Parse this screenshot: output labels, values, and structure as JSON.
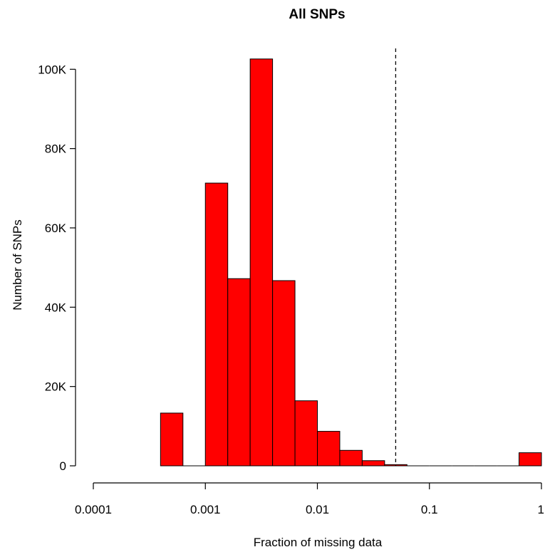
{
  "chart_data": {
    "type": "bar",
    "title": "All SNPs",
    "xlabel": "Fraction of missing data",
    "ylabel": "Number of SNPs",
    "x_scale": "log10",
    "xlim": [
      0.0001,
      1
    ],
    "ylim": [
      0,
      104000
    ],
    "x_ticks": [
      {
        "value": 0.0001,
        "label": "0.0001"
      },
      {
        "value": 0.001,
        "label": "0.001"
      },
      {
        "value": 0.01,
        "label": "0.01"
      },
      {
        "value": 0.1,
        "label": "0.1"
      },
      {
        "value": 1,
        "label": "1"
      }
    ],
    "y_ticks": [
      {
        "value": 0,
        "label": "0"
      },
      {
        "value": 20000,
        "label": "20K"
      },
      {
        "value": 40000,
        "label": "40K"
      },
      {
        "value": 60000,
        "label": "60K"
      },
      {
        "value": 80000,
        "label": "80K"
      },
      {
        "value": 100000,
        "label": "100K"
      }
    ],
    "bars": [
      {
        "x0": 0.000398,
        "x1": 0.000631,
        "count": 13300
      },
      {
        "x0": 0.000631,
        "x1": 0.001,
        "count": 0
      },
      {
        "x0": 0.001,
        "x1": 0.001585,
        "count": 71300
      },
      {
        "x0": 0.001585,
        "x1": 0.002512,
        "count": 47200
      },
      {
        "x0": 0.002512,
        "x1": 0.003981,
        "count": 102600
      },
      {
        "x0": 0.003981,
        "x1": 0.00631,
        "count": 46700
      },
      {
        "x0": 0.00631,
        "x1": 0.01,
        "count": 16400
      },
      {
        "x0": 0.01,
        "x1": 0.015849,
        "count": 8700
      },
      {
        "x0": 0.015849,
        "x1": 0.025119,
        "count": 3900
      },
      {
        "x0": 0.025119,
        "x1": 0.039811,
        "count": 1300
      },
      {
        "x0": 0.039811,
        "x1": 0.063096,
        "count": 300
      },
      {
        "x0": 0.063096,
        "x1": 0.1,
        "count": 0
      },
      {
        "x0": 0.1,
        "x1": 0.158489,
        "count": 0
      },
      {
        "x0": 0.158489,
        "x1": 0.251189,
        "count": 0
      },
      {
        "x0": 0.251189,
        "x1": 0.398107,
        "count": 0
      },
      {
        "x0": 0.398107,
        "x1": 0.630957,
        "count": 0
      },
      {
        "x0": 0.630957,
        "x1": 1,
        "count": 3300
      }
    ],
    "reference_line": {
      "x": 0.05,
      "style": "dashed"
    },
    "bar_color": "#ff0000",
    "grid": false,
    "legend": "none"
  }
}
